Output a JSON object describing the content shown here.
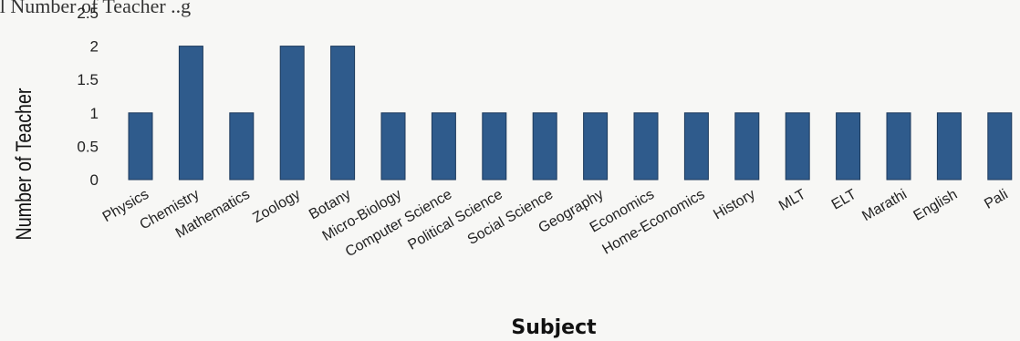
{
  "top_text": "al Number of Teacher ..g",
  "chart_data": {
    "type": "bar",
    "title": "",
    "xlabel": "Subject",
    "ylabel": "Number of Teacher",
    "ylim": [
      0,
      2.5
    ],
    "yticks": [
      0,
      0.5,
      1,
      1.5,
      2,
      2.5
    ],
    "ytick_labels": [
      "0",
      "0.5",
      "1",
      "1.5",
      "2",
      "2.5"
    ],
    "grid": false,
    "categories": [
      "Physics",
      "Chemistry",
      "Mathematics",
      "Zoology",
      "Botany",
      "Micro-Biology",
      "Computer Science",
      "Political Science",
      "Social Science",
      "Geography",
      "Economics",
      "Home-Economics",
      "History",
      "MLT",
      "ELT",
      "Marathi",
      "English",
      "Pali"
    ],
    "values": [
      1,
      2,
      1,
      2,
      2,
      1,
      1,
      1,
      1,
      1,
      1,
      1,
      1,
      1,
      1,
      1,
      1,
      1
    ],
    "bar_color": "#2f5b8c"
  }
}
